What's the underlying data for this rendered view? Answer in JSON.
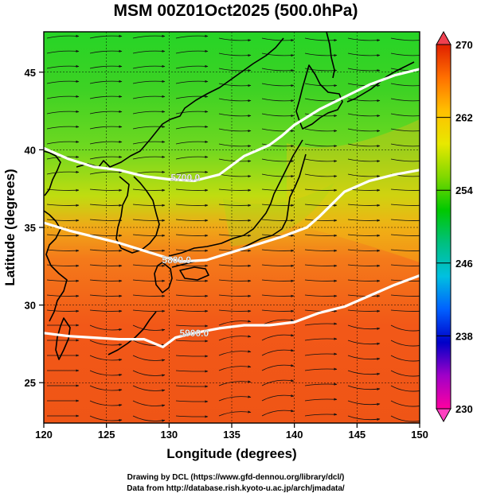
{
  "title": "MSM 00Z01Oct2025 (500.0hPa)",
  "x_axis": {
    "label": "Longitude (degrees)",
    "min": 120,
    "max": 150,
    "ticks": [
      "120",
      "125",
      "130",
      "135",
      "140",
      "145",
      "150"
    ]
  },
  "y_axis": {
    "label": "Latitude  (degrees)",
    "min": 22.4,
    "max": 47.6,
    "ticks": [
      "25",
      "30",
      "35",
      "40",
      "45"
    ]
  },
  "colorbar": {
    "min": 230,
    "max": 270,
    "labels": [
      "270",
      "262",
      "254",
      "246",
      "238",
      "230"
    ],
    "stops": [
      "#ff00a0",
      "#a000c8",
      "#0000c8",
      "#0060ff",
      "#00c0e0",
      "#00c080",
      "#00c800",
      "#80d800",
      "#e8e800",
      "#ffc000",
      "#ff7000",
      "#e02000"
    ]
  },
  "contours": [
    {
      "label": "5700.0",
      "label_lon": 131.3,
      "label_lat": 38.2,
      "points": [
        [
          120,
          40.1
        ],
        [
          122,
          39.4
        ],
        [
          124,
          38.9
        ],
        [
          126,
          38.7
        ],
        [
          128,
          38.3
        ],
        [
          130,
          38.1
        ],
        [
          132,
          38.0
        ],
        [
          134,
          38.4
        ],
        [
          135,
          39.0
        ],
        [
          136,
          39.6
        ],
        [
          138,
          40.3
        ],
        [
          139,
          40.9
        ],
        [
          140,
          41.6
        ],
        [
          142,
          42.6
        ],
        [
          144,
          43.4
        ],
        [
          146,
          44.2
        ],
        [
          148,
          44.8
        ],
        [
          150,
          45.2
        ]
      ]
    },
    {
      "label": "5800.0",
      "label_lon": 130.6,
      "label_lat": 32.9,
      "points": [
        [
          120,
          35.3
        ],
        [
          122,
          34.8
        ],
        [
          124,
          34.4
        ],
        [
          126,
          34.0
        ],
        [
          128,
          33.5
        ],
        [
          130,
          33.0
        ],
        [
          131,
          32.8
        ],
        [
          133,
          32.9
        ],
        [
          135,
          33.4
        ],
        [
          137,
          33.9
        ],
        [
          139,
          34.4
        ],
        [
          141,
          35.0
        ],
        [
          142,
          35.7
        ],
        [
          143,
          36.5
        ],
        [
          144,
          37.3
        ],
        [
          146,
          38.0
        ],
        [
          148,
          38.4
        ],
        [
          150,
          38.7
        ]
      ]
    },
    {
      "label": "5900.0",
      "label_lon": 132.0,
      "label_lat": 28.2,
      "points": [
        [
          120,
          28.2
        ],
        [
          122,
          28.0
        ],
        [
          124,
          27.9
        ],
        [
          126,
          27.8
        ],
        [
          128,
          27.8
        ],
        [
          129.5,
          27.3
        ],
        [
          130.5,
          27.9
        ],
        [
          132,
          28.2
        ],
        [
          134,
          28.5
        ],
        [
          136,
          28.7
        ],
        [
          138,
          28.7
        ],
        [
          140,
          28.9
        ],
        [
          142,
          29.5
        ],
        [
          144,
          29.9
        ],
        [
          146,
          30.6
        ],
        [
          148,
          31.3
        ],
        [
          150,
          31.9
        ]
      ]
    }
  ],
  "credits": {
    "line1": "Drawing by DCL (https://www.gfd-dennou.org/library/dcl/)",
    "line2": "Data from http://database.rish.kyoto-u.ac.jp/arch/jmadata/"
  }
}
